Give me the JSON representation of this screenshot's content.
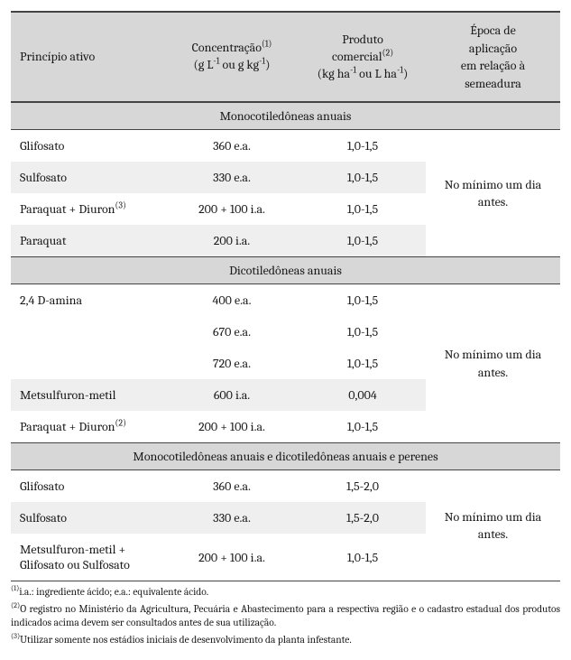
{
  "colors": {
    "header_bg": "#d7d7d7",
    "alt_row_bg": "#efefef",
    "border": "#444444",
    "text": "#1a1a1a",
    "page_bg": "#ffffff"
  },
  "typography": {
    "body_font": "Cambria, Georgia, serif",
    "body_size_pt": 14,
    "footnote_size_pt": 11.5
  },
  "header": {
    "col1": "Princípio ativo",
    "col2_html": "Concentração<sup>(1)</sup><br>(g L<sup>-1</sup> ou g kg<sup>-1</sup>)",
    "col3_html": "Produto<br>comercial<sup>(2)</sup><br>(kg ha<sup>-1</sup> ou L ha<sup>-1</sup>)",
    "col4_html": "Época de<br>aplicação<br>em relação à<br>semeadura"
  },
  "sections": [
    {
      "title": "Monocotiledôneas anuais",
      "timing": "No mínimo um dia antes.",
      "rows": [
        {
          "name": "Glifosato",
          "conc": "360 e.a.",
          "prod": "1,0-1,5",
          "alt": false
        },
        {
          "name": "Sulfosato",
          "conc": "330 e.a.",
          "prod": "1,0-1,5",
          "alt": true
        },
        {
          "name_html": "Paraquat + Diuron<sup>(3)</sup>",
          "conc": "200 + 100 i.a.",
          "prod": "1,0-1,5",
          "alt": false
        },
        {
          "name": "Paraquat",
          "conc": "200 i.a.",
          "prod": "1,0-1,5",
          "alt": true
        }
      ]
    },
    {
      "title": "Dicotiledôneas anuais",
      "timing": "No mínimo um dia antes.",
      "rows": [
        {
          "name": "2,4 D-amina",
          "conc": "400 e.a.",
          "prod": "1,0-1,5",
          "alt": false
        },
        {
          "name": "",
          "conc": "670 e.a.",
          "prod": "1,0-1,5",
          "alt": false
        },
        {
          "name": "",
          "conc": "720 e.a.",
          "prod": "1,0-1,5",
          "alt": false
        },
        {
          "name": "Metsulfuron-metil",
          "conc": "600 i.a.",
          "prod": "0,004",
          "alt": true
        },
        {
          "name_html": "Paraquat + Diuron<sup>(2)</sup>",
          "conc": "200 + 100 i.a.",
          "prod": "1,0-1,5",
          "alt": false
        }
      ]
    },
    {
      "title": "Monocotiledôneas anuais e dicotiledôneas anuais e perenes",
      "timing": "No mínimo um dia antes.",
      "rows": [
        {
          "name": "Glifosato",
          "conc": "360 e.a.",
          "prod": "1,5-2,0",
          "alt": false
        },
        {
          "name": "Sulfosato",
          "conc": "330 e.a.",
          "prod": "1,5-2,0",
          "alt": true
        },
        {
          "name_html": "Metsulfuron-metil +<br>Glifosato ou Sulfosato",
          "conc": "200 + 100 i.a.",
          "prod": "1,0-1,5",
          "alt": false
        }
      ]
    }
  ],
  "footnotes": [
    "<sup>(1)</sup>i.a.: ingrediente ácido; e.a.: equivalente ácido.",
    "<sup>(2)</sup>O registro no Ministério da Agricultura, Pecuária e Abastecimento para a respectiva região e o cadastro estadual dos produtos indicados acima devem ser consultados antes de sua utilização.",
    "<sup>(3)</sup>Utilizar somente nos estádios iniciais de desenvolvimento da planta infestante."
  ]
}
